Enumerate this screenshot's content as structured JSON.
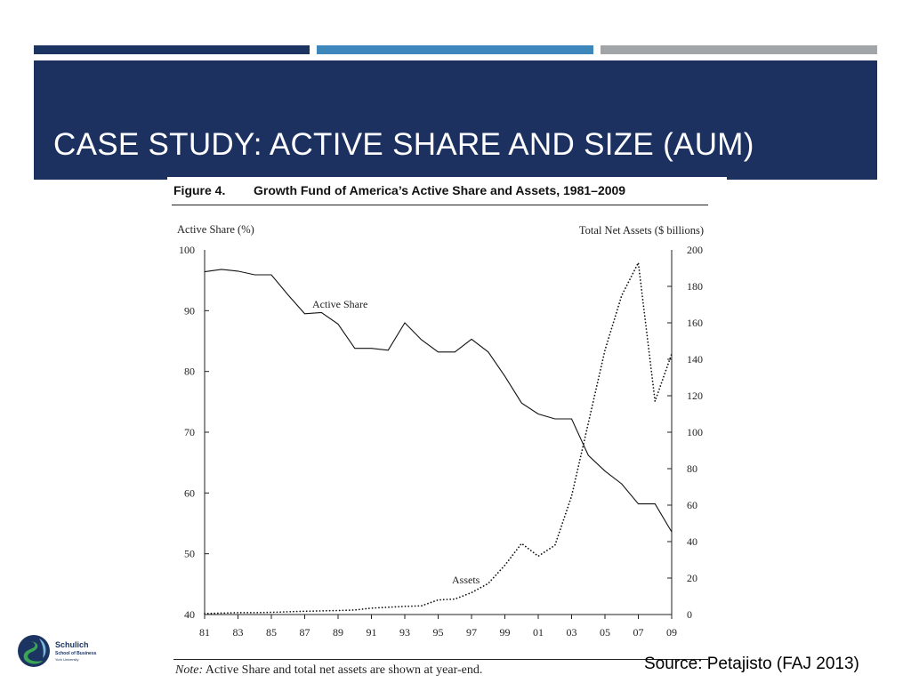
{
  "slide": {
    "title": "CASE STUDY: ACTIVE SHARE AND SIZE (AUM)",
    "source": "Source: Petajisto (FAJ 2013)",
    "colors": {
      "banner": "#1c3160",
      "stripe1": "#1c3461",
      "stripe2": "#3d87bd",
      "stripe3": "#a2a5a8"
    }
  },
  "figure": {
    "label": "Figure 4.",
    "caption": "Growth Fund of America’s Active Share and Assets, 1981–2009",
    "note_label": "Note:",
    "note_text": " Active Share and total net assets are shown at year-end."
  },
  "logo": {
    "name": "Schulich",
    "sub": "School of Business",
    "sub2": "York University",
    "icon": "schulich-logo-icon"
  },
  "chart_data": {
    "type": "line",
    "title": "Growth Fund of America’s Active Share and Assets, 1981–2009",
    "ylabel": "Active Share (%)",
    "y2label": "Total Net Assets ($ billions)",
    "ylim": [
      40,
      100
    ],
    "y2lim": [
      0,
      200
    ],
    "xlim": [
      1981,
      2009
    ],
    "x_tick_labels": [
      "81",
      "83",
      "85",
      "87",
      "89",
      "91",
      "93",
      "95",
      "97",
      "99",
      "01",
      "03",
      "05",
      "07",
      "09"
    ],
    "y_tick_labels": [
      "40",
      "50",
      "60",
      "70",
      "80",
      "90",
      "100"
    ],
    "y2_tick_labels": [
      "0",
      "20",
      "40",
      "60",
      "80",
      "100",
      "120",
      "140",
      "160",
      "180",
      "200"
    ],
    "grid": false,
    "legend": "none",
    "series": [
      {
        "name": "Active Share",
        "axis": "left",
        "style": "solid",
        "x": [
          1981,
          1982,
          1983,
          1984,
          1985,
          1986,
          1987,
          1988,
          1989,
          1990,
          1991,
          1992,
          1993,
          1994,
          1995,
          1996,
          1997,
          1998,
          1999,
          2000,
          2001,
          2002,
          2003,
          2004,
          2005,
          2006,
          2007,
          2008,
          2009
        ],
        "y": [
          96.4,
          96.8,
          96.5,
          95.9,
          95.9,
          92.6,
          89.5,
          89.7,
          87.8,
          83.8,
          83.8,
          83.5,
          88.0,
          85.2,
          83.2,
          83.2,
          85.3,
          83.2,
          79.2,
          74.8,
          73.0,
          72.2,
          72.2,
          66.2,
          63.6,
          61.5,
          58.2,
          58.2,
          53.6
        ]
      },
      {
        "name": "Assets",
        "axis": "right",
        "style": "dotted",
        "x": [
          1981,
          1982,
          1983,
          1984,
          1985,
          1986,
          1987,
          1988,
          1989,
          1990,
          1991,
          1992,
          1993,
          1994,
          1995,
          1996,
          1997,
          1998,
          1999,
          2000,
          2001,
          2002,
          2003,
          2004,
          2005,
          2006,
          2007,
          2008,
          2009
        ],
        "y": [
          0.5,
          0.8,
          1,
          1,
          1.2,
          1.5,
          1.8,
          2,
          2.2,
          2.5,
          3.5,
          4,
          4.5,
          4.8,
          8,
          8.5,
          12,
          17,
          27,
          39,
          32,
          38,
          65,
          105,
          145,
          175,
          193,
          117,
          143
        ]
      }
    ]
  }
}
